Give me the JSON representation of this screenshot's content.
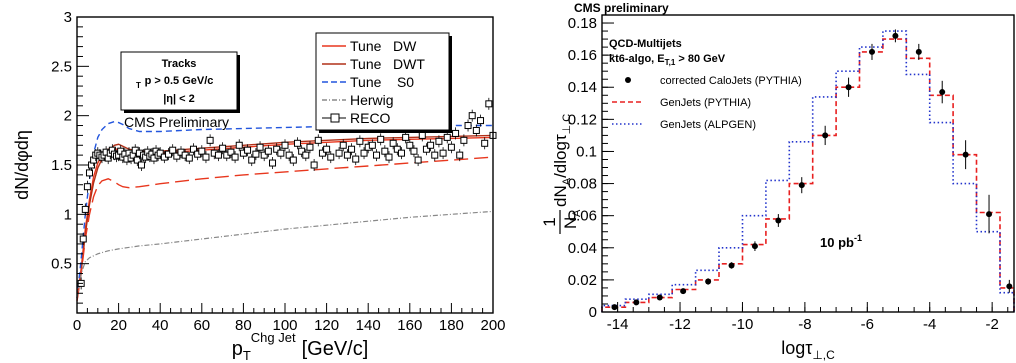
{
  "chart_data": [
    {
      "type": "line",
      "ylabel": "dN/dφdη",
      "xlabel_main": "p",
      "xlabel_sub": "T",
      "xlabel_sup": "Chg   Jet",
      "xlabel_unit": "[GeV/c]",
      "xlim": [
        0,
        200
      ],
      "ylim": [
        0,
        3
      ],
      "xticks": [
        "0",
        "20",
        "40",
        "60",
        "80",
        "100",
        "120",
        "140",
        "160",
        "180",
        "200"
      ],
      "yticks": [
        "0.5",
        "1",
        "1.5",
        "2",
        "2.5",
        "3"
      ],
      "text_box": {
        "line1": "Tracks",
        "line2": "p  > 0.5 GeV/c",
        "line2_sub": "T",
        "line3": "|η| < 2"
      },
      "preliminary": "CMS Preliminary",
      "legend": [
        {
          "label": "Tune   DW",
          "color": "#e8371e",
          "style": "solid"
        },
        {
          "label": "Tune   DWT",
          "color": "#b03018",
          "style": "solid"
        },
        {
          "label": "Tune    S0",
          "color": "#2255dd",
          "style": "dashed"
        },
        {
          "label": "Herwig",
          "color": "#888888",
          "style": "dashdot"
        },
        {
          "label": "RECO",
          "color": "#000000",
          "style": "marker"
        }
      ],
      "series": [
        {
          "name": "Tune   DW",
          "color": "#e8371e",
          "dash": "",
          "width": 1.4,
          "x": [
            0,
            2,
            4,
            6,
            8,
            10,
            12,
            15,
            18,
            20,
            22,
            25,
            30,
            40,
            60,
            80,
            100,
            120,
            140,
            160,
            180,
            200
          ],
          "y": [
            0.15,
            0.45,
            0.85,
            1.15,
            1.38,
            1.52,
            1.6,
            1.66,
            1.67,
            1.65,
            1.62,
            1.6,
            1.6,
            1.62,
            1.65,
            1.68,
            1.71,
            1.73,
            1.75,
            1.76,
            1.77,
            1.78
          ]
        },
        {
          "name": "Tune   DWT",
          "color": "#b03018",
          "dash": "",
          "width": 1.4,
          "x": [
            0,
            2,
            4,
            6,
            8,
            10,
            12,
            15,
            18,
            20,
            22,
            25,
            30,
            40,
            60,
            80,
            100,
            120,
            140,
            160,
            180,
            200
          ],
          "y": [
            0.13,
            0.42,
            0.8,
            1.1,
            1.32,
            1.47,
            1.56,
            1.64,
            1.7,
            1.71,
            1.69,
            1.66,
            1.64,
            1.64,
            1.67,
            1.7,
            1.73,
            1.75,
            1.77,
            1.78,
            1.79,
            1.8
          ]
        },
        {
          "name": "Tune    S0",
          "color": "#2255dd",
          "dash": "6,4",
          "width": 1.4,
          "x": [
            0,
            2,
            4,
            6,
            8,
            10,
            12,
            15,
            18,
            20,
            22,
            25,
            30,
            40,
            60,
            80,
            100,
            120,
            140,
            160,
            180,
            200
          ],
          "y": [
            0.15,
            0.55,
            1.0,
            1.35,
            1.62,
            1.78,
            1.86,
            1.92,
            1.94,
            1.93,
            1.91,
            1.87,
            1.84,
            1.84,
            1.86,
            1.87,
            1.88,
            1.89,
            1.89,
            1.9,
            1.9,
            1.9
          ]
        },
        {
          "name": "lower red",
          "color": "#e8371e",
          "dash": "14,6",
          "width": 1.4,
          "x": [
            0,
            2,
            4,
            6,
            8,
            10,
            12,
            15,
            18,
            20,
            22,
            25,
            30,
            40,
            60,
            80,
            100,
            120,
            140,
            160,
            180,
            200
          ],
          "y": [
            0.12,
            0.4,
            0.75,
            1.0,
            1.18,
            1.29,
            1.34,
            1.36,
            1.33,
            1.3,
            1.28,
            1.27,
            1.28,
            1.31,
            1.36,
            1.4,
            1.43,
            1.46,
            1.49,
            1.52,
            1.55,
            1.58
          ]
        },
        {
          "name": "Herwig",
          "color": "#888888",
          "dash": "5,2,1,2",
          "width": 1.2,
          "x": [
            0,
            2,
            4,
            6,
            8,
            10,
            15,
            20,
            30,
            40,
            60,
            80,
            100,
            120,
            140,
            160,
            180,
            200
          ],
          "y": [
            0.15,
            0.4,
            0.52,
            0.56,
            0.58,
            0.6,
            0.63,
            0.65,
            0.68,
            0.7,
            0.75,
            0.8,
            0.85,
            0.89,
            0.93,
            0.97,
            1.0,
            1.03
          ]
        }
      ],
      "points": [
        {
          "x": 2,
          "y": 0.3
        },
        {
          "x": 3,
          "y": 0.75
        },
        {
          "x": 4,
          "y": 1.05
        },
        {
          "x": 5,
          "y": 1.28
        },
        {
          "x": 6,
          "y": 1.42
        },
        {
          "x": 7,
          "y": 1.5
        },
        {
          "x": 8,
          "y": 1.55
        },
        {
          "x": 9,
          "y": 1.6
        },
        {
          "x": 10,
          "y": 1.62
        },
        {
          "x": 11,
          "y": 1.6
        },
        {
          "x": 12,
          "y": 1.58
        },
        {
          "x": 13,
          "y": 1.6
        },
        {
          "x": 14,
          "y": 1.63
        },
        {
          "x": 15,
          "y": 1.57
        },
        {
          "x": 16,
          "y": 1.62
        },
        {
          "x": 17,
          "y": 1.65
        },
        {
          "x": 18,
          "y": 1.61
        },
        {
          "x": 19,
          "y": 1.59
        },
        {
          "x": 20,
          "y": 1.6
        },
        {
          "x": 21,
          "y": 1.64
        },
        {
          "x": 22,
          "y": 1.58
        },
        {
          "x": 23,
          "y": 1.61
        },
        {
          "x": 24,
          "y": 1.56
        },
        {
          "x": 25,
          "y": 1.62
        },
        {
          "x": 26,
          "y": 1.57
        },
        {
          "x": 27,
          "y": 1.6
        },
        {
          "x": 28,
          "y": 1.65
        },
        {
          "x": 29,
          "y": 1.55
        },
        {
          "x": 30,
          "y": 1.62
        },
        {
          "x": 31,
          "y": 1.5
        },
        {
          "x": 32,
          "y": 1.6
        },
        {
          "x": 33,
          "y": 1.58
        },
        {
          "x": 34,
          "y": 1.63
        },
        {
          "x": 35,
          "y": 1.59
        },
        {
          "x": 36,
          "y": 1.61
        },
        {
          "x": 37,
          "y": 1.57
        },
        {
          "x": 38,
          "y": 1.64
        },
        {
          "x": 39,
          "y": 1.6
        },
        {
          "x": 40,
          "y": 1.62
        },
        {
          "x": 42,
          "y": 1.58
        },
        {
          "x": 44,
          "y": 1.61
        },
        {
          "x": 46,
          "y": 1.65
        },
        {
          "x": 48,
          "y": 1.59
        },
        {
          "x": 50,
          "y": 1.63
        },
        {
          "x": 52,
          "y": 1.6
        },
        {
          "x": 54,
          "y": 1.57
        },
        {
          "x": 56,
          "y": 1.66
        },
        {
          "x": 58,
          "y": 1.61
        },
        {
          "x": 60,
          "y": 1.64
        },
        {
          "x": 62,
          "y": 1.58
        },
        {
          "x": 64,
          "y": 1.75
        },
        {
          "x": 66,
          "y": 1.62
        },
        {
          "x": 68,
          "y": 1.6
        },
        {
          "x": 70,
          "y": 1.67
        },
        {
          "x": 72,
          "y": 1.6
        },
        {
          "x": 74,
          "y": 1.63
        },
        {
          "x": 76,
          "y": 1.58
        },
        {
          "x": 78,
          "y": 1.7
        },
        {
          "x": 80,
          "y": 1.62
        },
        {
          "x": 82,
          "y": 1.65
        },
        {
          "x": 84,
          "y": 1.55
        },
        {
          "x": 86,
          "y": 1.61
        },
        {
          "x": 88,
          "y": 1.68
        },
        {
          "x": 90,
          "y": 1.6
        },
        {
          "x": 92,
          "y": 1.64
        },
        {
          "x": 94,
          "y": 1.52
        },
        {
          "x": 96,
          "y": 1.66
        },
        {
          "x": 98,
          "y": 1.62
        },
        {
          "x": 100,
          "y": 1.7
        },
        {
          "x": 102,
          "y": 1.6
        },
        {
          "x": 104,
          "y": 1.55
        },
        {
          "x": 106,
          "y": 1.72
        },
        {
          "x": 108,
          "y": 1.64
        },
        {
          "x": 110,
          "y": 1.6
        },
        {
          "x": 112,
          "y": 1.68
        },
        {
          "x": 114,
          "y": 1.5
        },
        {
          "x": 116,
          "y": 1.75
        },
        {
          "x": 118,
          "y": 1.62
        },
        {
          "x": 120,
          "y": 1.66
        },
        {
          "x": 122,
          "y": 1.58
        },
        {
          "x": 124,
          "y": 1.92
        },
        {
          "x": 126,
          "y": 1.62
        },
        {
          "x": 128,
          "y": 1.7
        },
        {
          "x": 130,
          "y": 1.6
        },
        {
          "x": 132,
          "y": 1.66
        },
        {
          "x": 134,
          "y": 1.56
        },
        {
          "x": 136,
          "y": 1.74
        },
        {
          "x": 138,
          "y": 1.62
        },
        {
          "x": 140,
          "y": 1.68
        },
        {
          "x": 142,
          "y": 1.7
        },
        {
          "x": 144,
          "y": 1.6
        },
        {
          "x": 146,
          "y": 1.76
        },
        {
          "x": 148,
          "y": 1.64
        },
        {
          "x": 150,
          "y": 1.58
        },
        {
          "x": 152,
          "y": 1.72
        },
        {
          "x": 154,
          "y": 1.66
        },
        {
          "x": 156,
          "y": 1.62
        },
        {
          "x": 158,
          "y": 1.78
        },
        {
          "x": 160,
          "y": 1.7
        },
        {
          "x": 162,
          "y": 1.64
        },
        {
          "x": 164,
          "y": 1.55
        },
        {
          "x": 166,
          "y": 1.8
        },
        {
          "x": 168,
          "y": 1.66
        },
        {
          "x": 170,
          "y": 1.7
        },
        {
          "x": 172,
          "y": 1.6
        },
        {
          "x": 174,
          "y": 1.74
        },
        {
          "x": 176,
          "y": 1.62
        },
        {
          "x": 178,
          "y": 1.78
        },
        {
          "x": 180,
          "y": 1.68
        },
        {
          "x": 182,
          "y": 1.82
        },
        {
          "x": 184,
          "y": 1.6
        },
        {
          "x": 186,
          "y": 1.75
        },
        {
          "x": 188,
          "y": 1.9
        },
        {
          "x": 190,
          "y": 2.0
        },
        {
          "x": 192,
          "y": 1.85
        },
        {
          "x": 194,
          "y": 1.95
        },
        {
          "x": 196,
          "y": 1.72
        },
        {
          "x": 198,
          "y": 2.12
        },
        {
          "x": 200,
          "y": 1.8
        }
      ]
    },
    {
      "type": "step",
      "title": "CMS preliminary",
      "xlabel": "logτ",
      "xlabel_sub": "⊥,C",
      "ylabel_frac_num": "1",
      "ylabel_frac_den": "N",
      "ylabel_frac_den_sub": "A",
      "ylabel_rest": "dN",
      "ylabel_rest_sub": "A",
      "ylabel_tail": "/dlogτ",
      "ylabel_tail_sub": "⊥,C",
      "xlim": [
        -14.5,
        -1.3
      ],
      "ylim": [
        0,
        0.185
      ],
      "xticks": [
        "-14",
        "-12",
        "-10",
        "-8",
        "-6",
        "-4",
        "-2"
      ],
      "yticks": [
        "0",
        "0.02",
        "0.04",
        "0.06",
        "0.08",
        "0.1",
        "0.12",
        "0.14",
        "0.16",
        "0.18"
      ],
      "info": {
        "line1": "QCD-Multijets",
        "line2": "kt6-algo, E",
        "line2_sub": "T,1",
        "line2_tail": " > 80 GeV"
      },
      "lumi": "10 pb",
      "lumi_sup": "-1",
      "legend": [
        {
          "label": "corrected CaloJets (PYTHIA)",
          "color": "#000000",
          "style": "marker"
        },
        {
          "label": "GenJets (PYTHIA)",
          "color": "#e82020",
          "style": "dashed"
        },
        {
          "label": "GenJets (ALPGEN)",
          "color": "#2233cc",
          "style": "dotted"
        }
      ],
      "bin_edges": [
        -14.5,
        -13.75,
        -13.0,
        -12.25,
        -11.5,
        -10.75,
        -10.0,
        -9.25,
        -8.5,
        -7.75,
        -7.0,
        -6.25,
        -5.5,
        -4.75,
        -4.0,
        -3.25,
        -2.5,
        -1.75,
        -1.3
      ],
      "series": [
        {
          "name": "GenJets (PYTHIA)",
          "color": "#e82020",
          "dash": "5,3",
          "values": [
            0.003,
            0.006,
            0.009,
            0.014,
            0.02,
            0.03,
            0.042,
            0.058,
            0.08,
            0.11,
            0.14,
            0.162,
            0.17,
            0.158,
            0.135,
            0.098,
            0.062,
            0.015
          ]
        },
        {
          "name": "GenJets (ALPGEN)",
          "color": "#2233cc",
          "dash": "1.5,2.5",
          "values": [
            0.004,
            0.008,
            0.011,
            0.017,
            0.026,
            0.04,
            0.06,
            0.082,
            0.106,
            0.134,
            0.15,
            0.165,
            0.175,
            0.148,
            0.118,
            0.08,
            0.05,
            0.012
          ]
        }
      ],
      "points": [
        {
          "x": -14.1,
          "y": 0.003,
          "e": 0.001
        },
        {
          "x": -13.4,
          "y": 0.006,
          "e": 0.001
        },
        {
          "x": -12.65,
          "y": 0.009,
          "e": 0.001
        },
        {
          "x": -11.9,
          "y": 0.013,
          "e": 0.001
        },
        {
          "x": -11.1,
          "y": 0.019,
          "e": 0.002
        },
        {
          "x": -10.35,
          "y": 0.029,
          "e": 0.002
        },
        {
          "x": -9.6,
          "y": 0.041,
          "e": 0.003
        },
        {
          "x": -8.85,
          "y": 0.057,
          "e": 0.004
        },
        {
          "x": -8.1,
          "y": 0.079,
          "e": 0.005
        },
        {
          "x": -7.35,
          "y": 0.11,
          "e": 0.006
        },
        {
          "x": -6.6,
          "y": 0.14,
          "e": 0.006
        },
        {
          "x": -5.85,
          "y": 0.162,
          "e": 0.005
        },
        {
          "x": -5.1,
          "y": 0.172,
          "e": 0.004
        },
        {
          "x": -4.35,
          "y": 0.162,
          "e": 0.005
        },
        {
          "x": -3.6,
          "y": 0.137,
          "e": 0.007
        },
        {
          "x": -2.85,
          "y": 0.098,
          "e": 0.009
        },
        {
          "x": -2.1,
          "y": 0.061,
          "e": 0.012
        },
        {
          "x": -1.45,
          "y": 0.016,
          "e": 0.004
        }
      ]
    }
  ]
}
